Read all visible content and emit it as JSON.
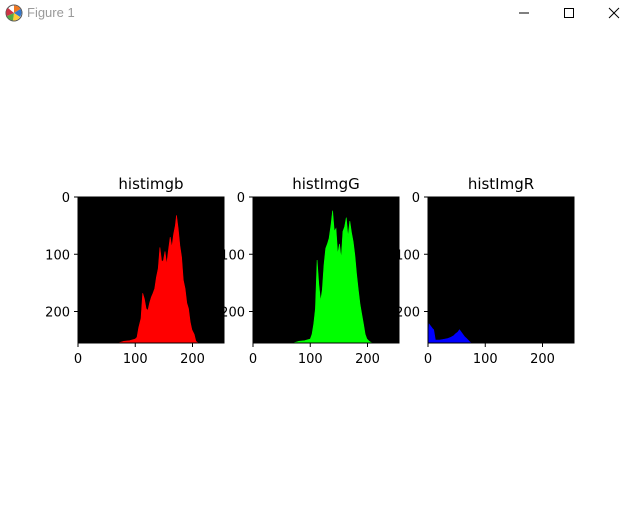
{
  "window": {
    "title": "Figure 1",
    "controls": [
      "minimize",
      "maximize",
      "close"
    ]
  },
  "chart_data": [
    {
      "type": "area",
      "title": "histimgb",
      "color": "#ff0000",
      "background": "#000000",
      "xlim": [
        0,
        255
      ],
      "ylim": [
        255,
        0
      ],
      "xticks": [
        "0",
        "100",
        "200"
      ],
      "yticks": [
        "0",
        "100",
        "200"
      ],
      "x": [
        0,
        70,
        80,
        90,
        100,
        103,
        106,
        110,
        113,
        116,
        119,
        122,
        125,
        128,
        131,
        134,
        137,
        140,
        143,
        146,
        149,
        152,
        155,
        158,
        161,
        164,
        167,
        170,
        172,
        175,
        178,
        181,
        184,
        187,
        190,
        193,
        196,
        199,
        203,
        206,
        210,
        255
      ],
      "y": [
        255,
        255,
        252,
        251,
        248,
        245,
        228,
        212,
        168,
        178,
        195,
        198,
        185,
        175,
        168,
        160,
        140,
        125,
        88,
        112,
        112,
        95,
        118,
        92,
        70,
        88,
        65,
        50,
        32,
        55,
        85,
        105,
        145,
        160,
        185,
        195,
        218,
        232,
        240,
        252,
        255,
        255
      ]
    },
    {
      "type": "area",
      "title": "histImgG",
      "color": "#00ff00",
      "background": "#000000",
      "xlim": [
        0,
        255
      ],
      "ylim": [
        255,
        0
      ],
      "xticks": [
        "0",
        "100",
        "200"
      ],
      "yticks": [
        "0",
        "100",
        "200"
      ],
      "x": [
        0,
        70,
        80,
        90,
        100,
        103,
        106,
        109,
        112,
        115,
        118,
        121,
        124,
        127,
        130,
        133,
        136,
        139,
        142,
        145,
        148,
        151,
        154,
        157,
        160,
        163,
        166,
        169,
        172,
        175,
        178,
        181,
        184,
        187,
        190,
        193,
        196,
        199,
        203,
        206,
        210,
        218,
        255
      ],
      "y": [
        255,
        255,
        252,
        251,
        248,
        240,
        222,
        195,
        110,
        152,
        182,
        162,
        118,
        90,
        82,
        72,
        50,
        24,
        60,
        55,
        100,
        82,
        108,
        60,
        52,
        36,
        70,
        42,
        62,
        78,
        102,
        135,
        162,
        188,
        205,
        222,
        240,
        248,
        252,
        254,
        255,
        255,
        255
      ]
    },
    {
      "type": "area",
      "title": "histImgR",
      "color": "#0000ff",
      "background": "#000000",
      "xlim": [
        0,
        255
      ],
      "ylim": [
        255,
        0
      ],
      "xticks": [
        "0",
        "100",
        "200"
      ],
      "yticks": [
        "0",
        "100",
        "200"
      ],
      "x": [
        0,
        2,
        5,
        8,
        10,
        13,
        16,
        20,
        25,
        30,
        35,
        40,
        45,
        48,
        52,
        55,
        58,
        61,
        64,
        67,
        70,
        73,
        76,
        80,
        255
      ],
      "y": [
        255,
        222,
        226,
        230,
        232,
        250,
        250,
        250,
        249,
        248,
        247,
        245,
        242,
        239,
        236,
        232,
        236,
        240,
        244,
        247,
        250,
        253,
        255,
        255,
        255
      ]
    }
  ]
}
